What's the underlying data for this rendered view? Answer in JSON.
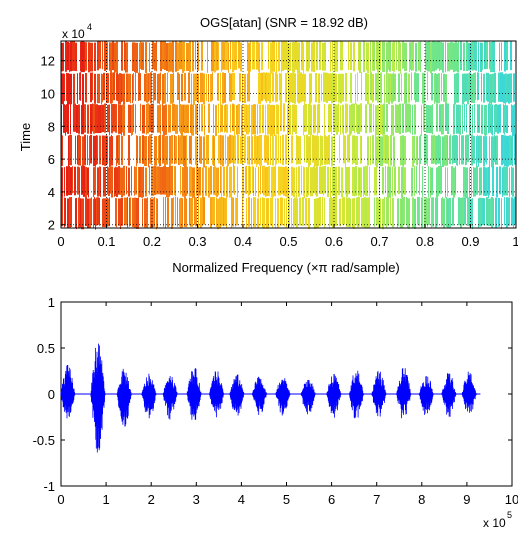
{
  "chart_data": [
    {
      "type": "heatmap",
      "title": "OGS[atan] (SNR = 18.92 dB)",
      "xlabel": "Normalized Frequency  (×π rad/sample)",
      "ylabel": "Time",
      "y_exponent_label": "x 10",
      "y_exponent_power": "4",
      "xlim": [
        0,
        1
      ],
      "ylim": [
        1.8,
        13.2
      ],
      "x_ticks": [
        "0",
        "0.1",
        "0.2",
        "0.3",
        "0.4",
        "0.5",
        "0.6",
        "0.7",
        "0.8",
        "0.9",
        "1"
      ],
      "y_ticks": [
        "2",
        "4",
        "6",
        "8",
        "10",
        "12"
      ],
      "colormap": "jet (red at low frequency to cyan at high frequency)",
      "grid": true
    },
    {
      "type": "line",
      "title": "",
      "xlabel": "",
      "ylabel": "",
      "x_exponent_label": "x 10",
      "x_exponent_power": "5",
      "xlim": [
        0,
        10
      ],
      "ylim": [
        -1,
        1
      ],
      "x_ticks": [
        "0",
        "1",
        "2",
        "3",
        "4",
        "5",
        "6",
        "7",
        "8",
        "9",
        "10"
      ],
      "y_ticks": [
        "1",
        "0.5",
        "0",
        "-0.5",
        "-1"
      ],
      "line_color": "#0000ff",
      "burst_centers": [
        0.15,
        0.82,
        1.4,
        1.95,
        2.42,
        2.95,
        3.45,
        3.9,
        4.4,
        4.92,
        5.48,
        6.05,
        6.55,
        7.05,
        7.6,
        8.1,
        8.6,
        9.05
      ],
      "burst_peaks": [
        0.32,
        0.6,
        0.28,
        0.22,
        0.24,
        0.3,
        0.26,
        0.22,
        0.2,
        0.2,
        0.18,
        0.22,
        0.28,
        0.26,
        0.3,
        0.22,
        0.24,
        0.25
      ],
      "burst_troughs": [
        -0.3,
        -0.65,
        -0.38,
        -0.3,
        -0.28,
        -0.32,
        -0.3,
        -0.26,
        -0.25,
        -0.24,
        -0.24,
        -0.26,
        -0.32,
        -0.28,
        -0.3,
        -0.26,
        -0.26,
        -0.24
      ],
      "signal_end": 9.3
    }
  ]
}
